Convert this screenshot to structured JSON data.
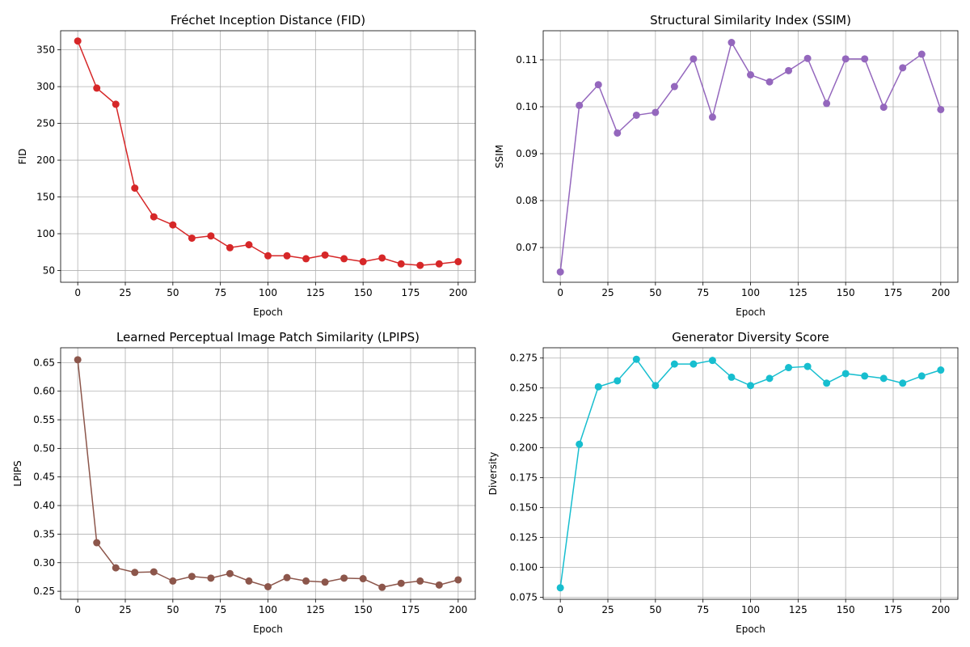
{
  "chart_data": [
    {
      "type": "line",
      "title": "Fréchet Inception Distance (FID)",
      "xlabel": "Epoch",
      "ylabel": "FID",
      "grid": true,
      "color": "#d62728",
      "x": [
        0,
        10,
        20,
        30,
        40,
        50,
        60,
        70,
        80,
        90,
        100,
        110,
        120,
        130,
        140,
        150,
        160,
        170,
        180,
        190,
        200
      ],
      "values": [
        362,
        298,
        276,
        162,
        123,
        112,
        94,
        97,
        81,
        85,
        70,
        70,
        66,
        71,
        66,
        62,
        67,
        59,
        57,
        59,
        62
      ],
      "xlim": [
        -9,
        209
      ],
      "ylim": [
        34,
        376
      ],
      "xticks": [
        0,
        25,
        50,
        75,
        100,
        125,
        150,
        175,
        200
      ],
      "xtick_labels": [
        "0",
        "25",
        "50",
        "75",
        "100",
        "125",
        "150",
        "175",
        "200"
      ],
      "yticks": [
        50,
        100,
        150,
        200,
        250,
        300,
        350
      ],
      "ytick_labels": [
        "50",
        "100",
        "150",
        "200",
        "250",
        "300",
        "350"
      ]
    },
    {
      "type": "line",
      "title": "Structural Similarity Index (SSIM)",
      "xlabel": "Epoch",
      "ylabel": "SSIM",
      "grid": true,
      "color": "#9467bd",
      "x": [
        0,
        10,
        20,
        30,
        40,
        50,
        60,
        70,
        80,
        90,
        100,
        110,
        120,
        130,
        140,
        150,
        160,
        170,
        180,
        190,
        200
      ],
      "values": [
        0.0648,
        0.1003,
        0.1047,
        0.0944,
        0.0982,
        0.0988,
        0.1043,
        0.1102,
        0.0978,
        0.1137,
        0.1068,
        0.1053,
        0.1077,
        0.1103,
        0.1007,
        0.1102,
        0.1102,
        0.0999,
        0.1083,
        0.1112,
        0.0994
      ],
      "xlim": [
        -9,
        209
      ],
      "ylim": [
        0.0626,
        0.1162
      ],
      "xticks": [
        0,
        25,
        50,
        75,
        100,
        125,
        150,
        175,
        200
      ],
      "xtick_labels": [
        "0",
        "25",
        "50",
        "75",
        "100",
        "125",
        "150",
        "175",
        "200"
      ],
      "yticks": [
        0.07,
        0.08,
        0.09,
        0.1,
        0.11
      ],
      "ytick_labels": [
        "0.07",
        "0.08",
        "0.09",
        "0.10",
        "0.11"
      ]
    },
    {
      "type": "line",
      "title": "Learned Perceptual Image Patch Similarity (LPIPS)",
      "xlabel": "Epoch",
      "ylabel": "LPIPS",
      "grid": true,
      "color": "#8c564b",
      "x": [
        0,
        10,
        20,
        30,
        40,
        50,
        60,
        70,
        80,
        90,
        100,
        110,
        120,
        130,
        140,
        150,
        160,
        170,
        180,
        190,
        200
      ],
      "values": [
        0.655,
        0.335,
        0.291,
        0.283,
        0.284,
        0.268,
        0.276,
        0.273,
        0.281,
        0.268,
        0.258,
        0.274,
        0.268,
        0.266,
        0.273,
        0.272,
        0.257,
        0.264,
        0.268,
        0.261,
        0.27
      ],
      "xlim": [
        -9,
        209
      ],
      "ylim": [
        0.236,
        0.676
      ],
      "xticks": [
        0,
        25,
        50,
        75,
        100,
        125,
        150,
        175,
        200
      ],
      "xtick_labels": [
        "0",
        "25",
        "50",
        "75",
        "100",
        "125",
        "150",
        "175",
        "200"
      ],
      "yticks": [
        0.25,
        0.3,
        0.35,
        0.4,
        0.45,
        0.5,
        0.55,
        0.6,
        0.65
      ],
      "ytick_labels": [
        "0.25",
        "0.30",
        "0.35",
        "0.40",
        "0.45",
        "0.50",
        "0.55",
        "0.60",
        "0.65"
      ]
    },
    {
      "type": "line",
      "title": "Generator Diversity Score",
      "xlabel": "Epoch",
      "ylabel": "Diversity",
      "grid": true,
      "color": "#17becf",
      "x": [
        0,
        10,
        20,
        30,
        40,
        50,
        60,
        70,
        80,
        90,
        100,
        110,
        120,
        130,
        140,
        150,
        160,
        170,
        180,
        190,
        200
      ],
      "values": [
        0.083,
        0.203,
        0.251,
        0.256,
        0.274,
        0.252,
        0.27,
        0.27,
        0.273,
        0.259,
        0.252,
        0.258,
        0.267,
        0.268,
        0.254,
        0.262,
        0.26,
        0.258,
        0.254,
        0.26,
        0.265
      ],
      "xlim": [
        -9,
        209
      ],
      "ylim": [
        0.0734,
        0.2836
      ],
      "xticks": [
        0,
        25,
        50,
        75,
        100,
        125,
        150,
        175,
        200
      ],
      "xtick_labels": [
        "0",
        "25",
        "50",
        "75",
        "100",
        "125",
        "150",
        "175",
        "200"
      ],
      "yticks": [
        0.075,
        0.1,
        0.125,
        0.15,
        0.175,
        0.2,
        0.225,
        0.25,
        0.275
      ],
      "ytick_labels": [
        "0.075",
        "0.100",
        "0.125",
        "0.150",
        "0.175",
        "0.200",
        "0.225",
        "0.250",
        "0.275"
      ]
    }
  ]
}
